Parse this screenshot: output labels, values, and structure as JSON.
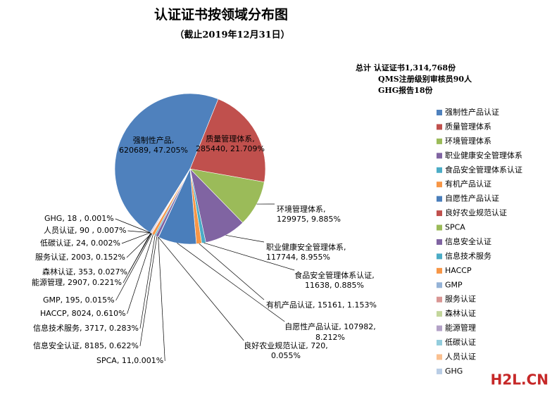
{
  "chart_data": {
    "type": "pie",
    "title": "认证证书按领域分布图",
    "subtitle": "（截止2019年12月31日）",
    "notes": [
      "总计  认证证书1,314,768份",
      "QMS注册级别审核员90人",
      "GHG报告18份"
    ],
    "watermark": "H2L.CN",
    "categories": [
      "强制性产品认证",
      "质量管理体系",
      "环境管理体系",
      "职业健康安全管理体系",
      "食品安全管理体系认证",
      "有机产品认证",
      "自愿性产品认证",
      "良好农业规范认证",
      "SPCA",
      "信息安全认证",
      "信息技术服务",
      "HACCP",
      "GMP",
      "服务认证",
      "森林认证",
      "能源管理",
      "低碳认证",
      "人员认证",
      "GHG"
    ],
    "values": [
      620689,
      285440,
      129975,
      117744,
      11638,
      15161,
      107982,
      720,
      11,
      8185,
      3717,
      8024,
      195,
      2003,
      353,
      2907,
      24,
      90,
      18
    ],
    "colors": [
      "#4F81BD",
      "#C0504D",
      "#9BBB59",
      "#8064A2",
      "#4BACC6",
      "#F79646",
      "#4A7EBB",
      "#C0504D",
      "#9BBB59",
      "#8064A2",
      "#4BACC6",
      "#F79646",
      "#95B3D7",
      "#D99694",
      "#C3D69B",
      "#B3A2C7",
      "#93CDDD",
      "#FAC090",
      "#B9CDE5"
    ],
    "value_labels": [
      [
        "强制性产品,",
        "620689, 47.205%"
      ],
      [
        "质量管理体系,",
        "285440, 21.709%"
      ],
      [
        "环境管理体系,",
        "129975, 9.885%"
      ],
      [
        "职业健康安全管理体系,",
        "117744, 8.955%"
      ],
      [
        "食品安全管理体系认证,",
        "11638, 0.885%"
      ],
      [
        "有机产品认证, 15161, 1.153%"
      ],
      [
        "自愿性产品认证, 107982,",
        "8.212%"
      ],
      [
        "良好农业规范认证, 720,",
        "0.055%"
      ],
      [
        "SPCA, 11,0.001%"
      ],
      [
        "信息安全认证, 8185, 0.622%"
      ],
      [
        "信息技术服务, 3717, 0.283%"
      ],
      [
        "HACCP, 8024, 0.610%"
      ],
      [
        "GMP, 195, 0.015%"
      ],
      [
        "服务认证, 2003, 0.152%"
      ],
      [
        "森林认证, 353, 0.027%"
      ],
      [
        "能源管理, 2907, 0.221%"
      ],
      [
        "低碳认证, 24, 0.002%"
      ],
      [
        "人员认证, 90 , 0.007%"
      ],
      [
        "GHG, 18 , 0.001%"
      ]
    ]
  }
}
